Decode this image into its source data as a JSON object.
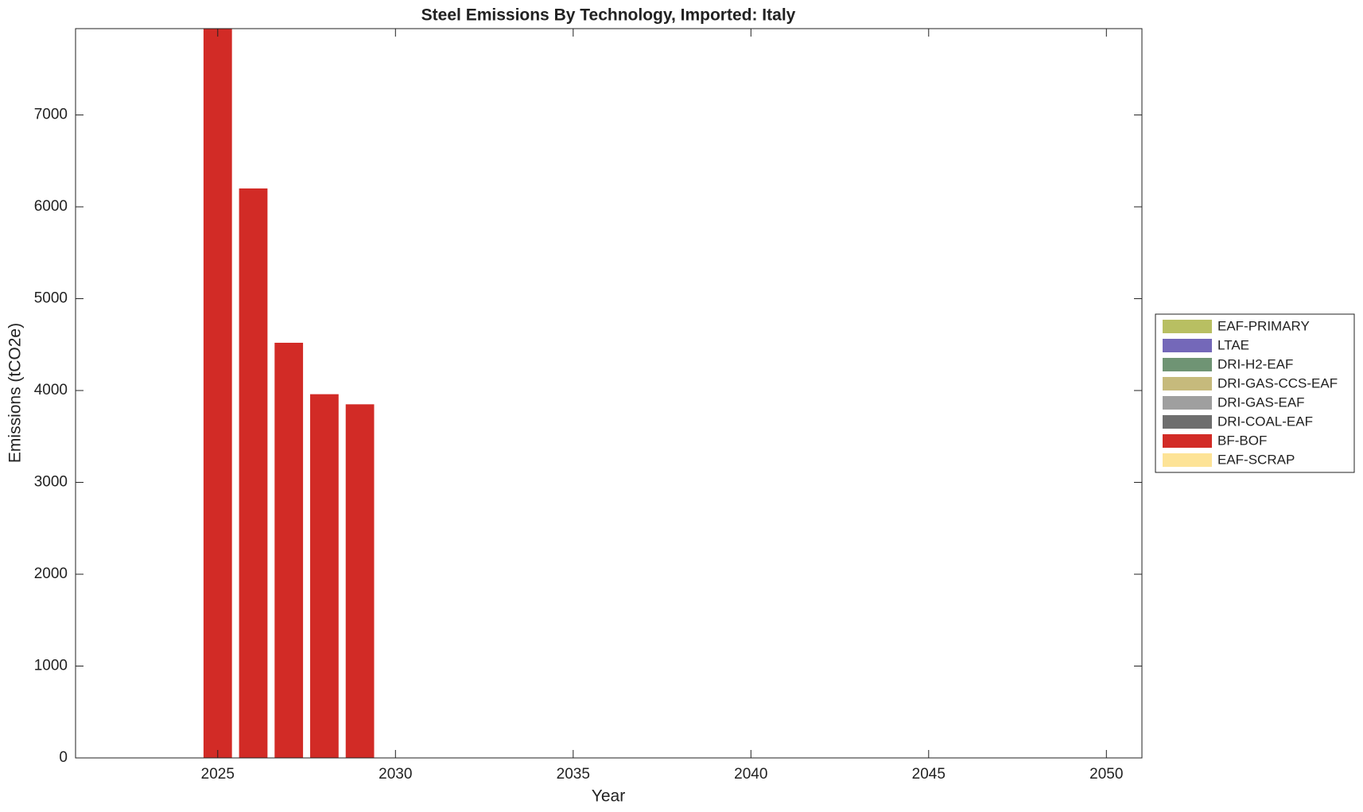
{
  "chart_data": {
    "type": "bar",
    "stacked": true,
    "title": "Steel Emissions By Technology, Imported: Italy",
    "xlabel": "Year",
    "ylabel": "Emissions (tCO2e)",
    "x": [
      2025,
      2026,
      2027,
      2028,
      2029
    ],
    "series": [
      {
        "name": "EAF-PRIMARY",
        "color": "#b8bf62",
        "values": [
          0,
          0,
          0,
          0,
          0
        ]
      },
      {
        "name": "LTAE",
        "color": "#7468b9",
        "values": [
          0,
          0,
          0,
          0,
          0
        ]
      },
      {
        "name": "DRI-H2-EAF",
        "color": "#6f9474",
        "values": [
          0,
          0,
          0,
          0,
          0
        ]
      },
      {
        "name": "DRI-GAS-CCS-EAF",
        "color": "#c6ba7c",
        "values": [
          0,
          0,
          0,
          0,
          0
        ]
      },
      {
        "name": "DRI-GAS-EAF",
        "color": "#9f9f9f",
        "values": [
          0,
          0,
          0,
          0,
          0
        ]
      },
      {
        "name": "DRI-COAL-EAF",
        "color": "#6e6e6e",
        "values": [
          0,
          0,
          0,
          0,
          0
        ]
      },
      {
        "name": "BF-BOF",
        "color": "#d22b26",
        "values": [
          7940,
          6200,
          4520,
          3960,
          3850
        ]
      },
      {
        "name": "EAF-SCRAP",
        "color": "#fde396",
        "values": [
          0,
          0,
          0,
          0,
          0
        ]
      }
    ],
    "xlim": [
      2021,
      2051
    ],
    "xticks": [
      2025,
      2030,
      2035,
      2040,
      2045,
      2050
    ],
    "ylim": [
      0,
      7940
    ],
    "yticks": [
      0,
      1000,
      2000,
      3000,
      4000,
      5000,
      6000,
      7000
    ],
    "legend": "outside-right"
  }
}
